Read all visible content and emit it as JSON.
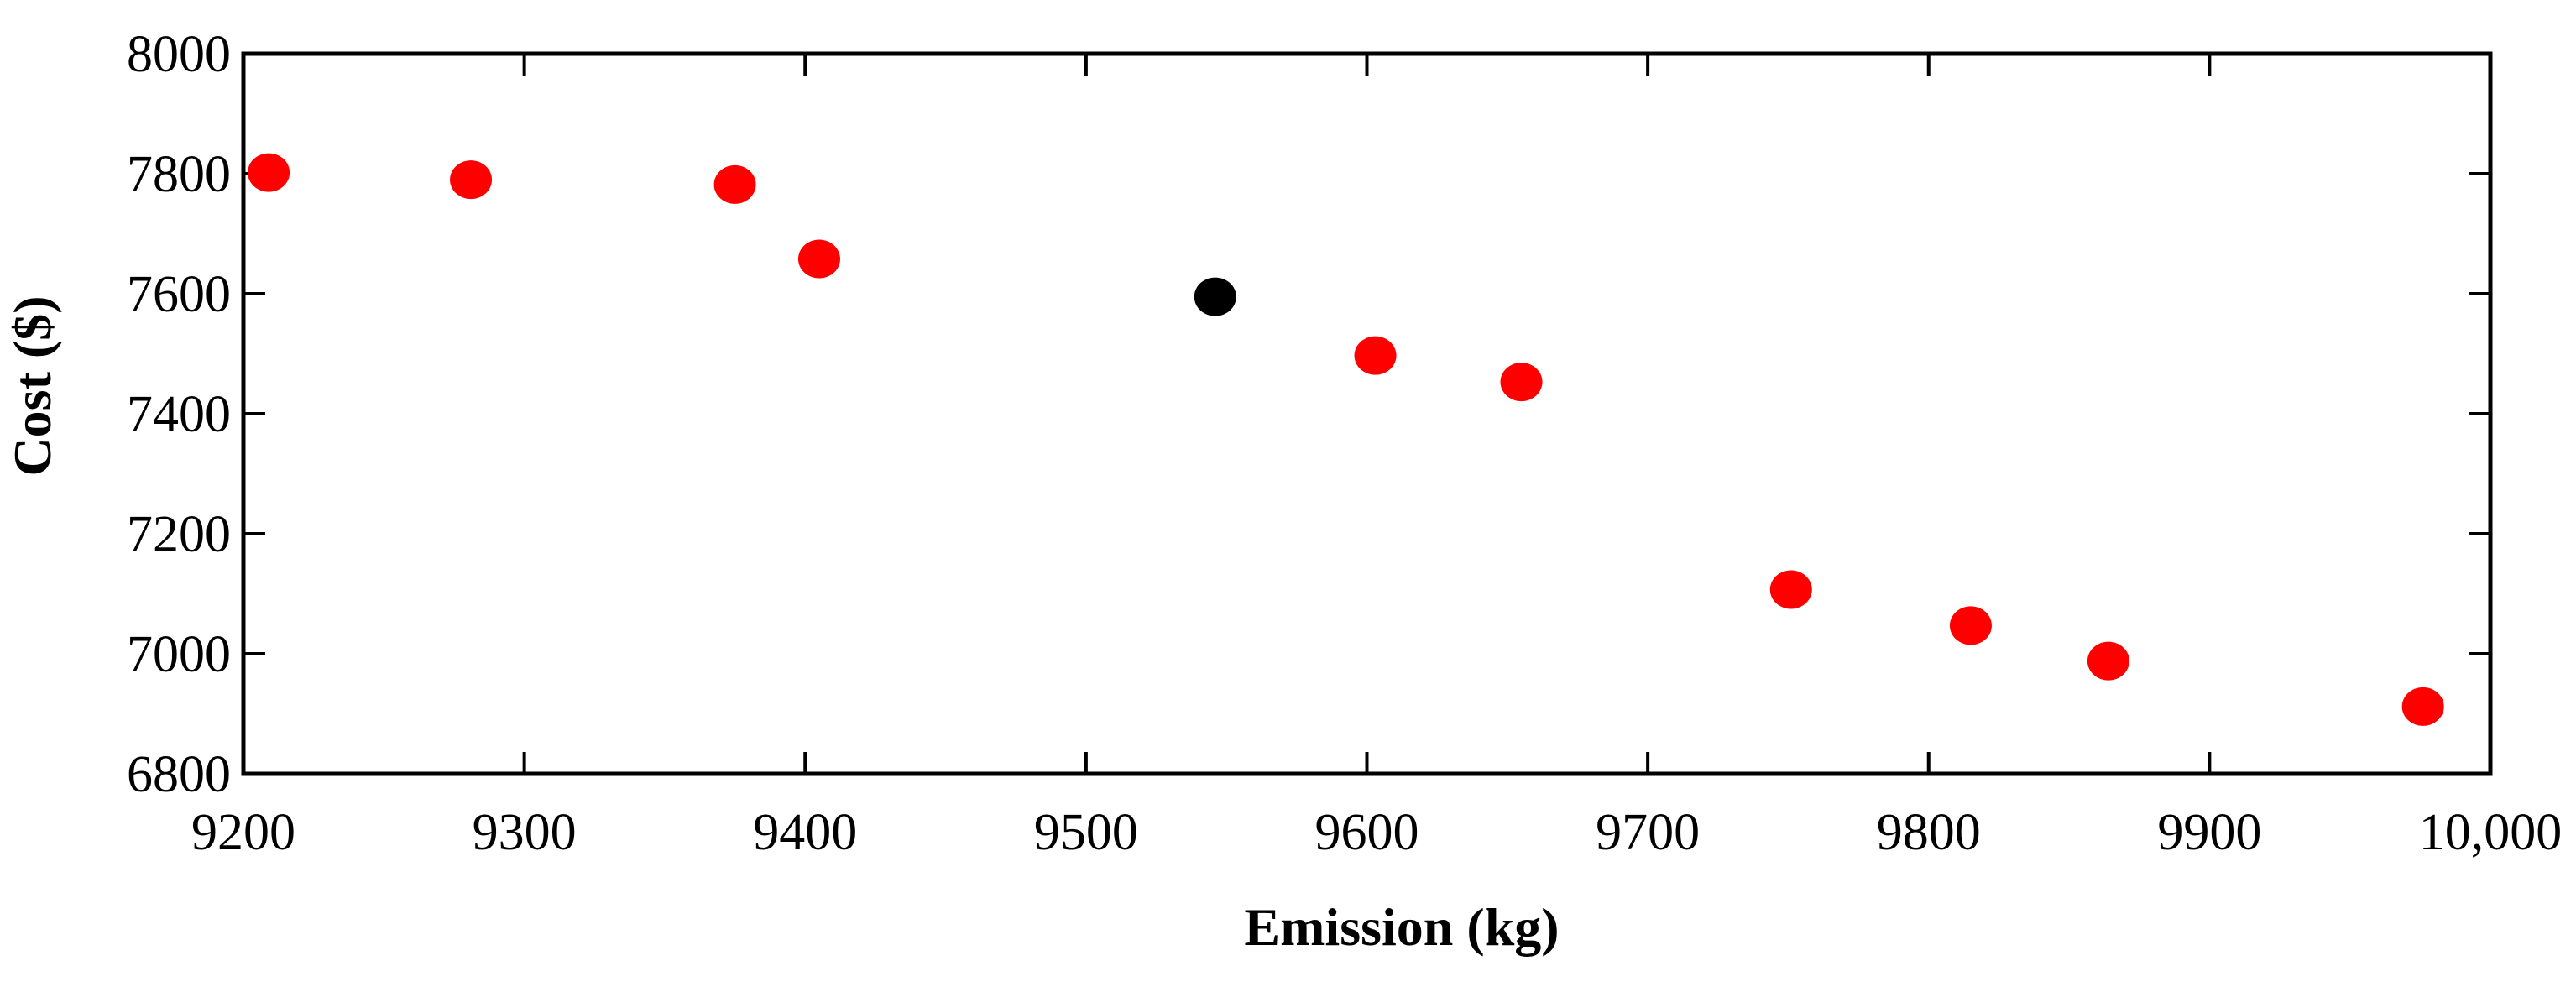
{
  "chart_data": {
    "type": "scatter",
    "title": "",
    "xlabel": "Emission (kg)",
    "ylabel": "Cost ($)",
    "xlim": [
      9200,
      10000
    ],
    "ylim": [
      6800,
      8000
    ],
    "x_ticks": [
      9200,
      9300,
      9400,
      9500,
      9600,
      9700,
      9800,
      9900,
      10000
    ],
    "x_tick_labels": [
      "9200",
      "9300",
      "9400",
      "9500",
      "9600",
      "9700",
      "9800",
      "9900",
      "10,000"
    ],
    "y_ticks": [
      6800,
      7000,
      7200,
      7400,
      7600,
      7800,
      8000
    ],
    "y_tick_labels": [
      "6800",
      "7000",
      "7200",
      "7400",
      "7600",
      "7800",
      "8000"
    ],
    "grid": false,
    "legend": "none",
    "colors": {
      "points": "#ff0000",
      "highlight": "#000000",
      "axes": "#000000"
    },
    "series": [
      {
        "color": "#ff0000",
        "points": [
          {
            "x": 9209,
            "y": 7802
          },
          {
            "x": 9281,
            "y": 7790
          },
          {
            "x": 9375,
            "y": 7782
          },
          {
            "x": 9405,
            "y": 7658
          },
          {
            "x": 9603,
            "y": 7497
          },
          {
            "x": 9655,
            "y": 7453
          },
          {
            "x": 9751,
            "y": 7107
          },
          {
            "x": 9815,
            "y": 7047
          },
          {
            "x": 9864,
            "y": 6988
          },
          {
            "x": 9976,
            "y": 6912
          }
        ]
      },
      {
        "color": "#000000",
        "points": [
          {
            "x": 9546,
            "y": 7595
          }
        ]
      }
    ]
  }
}
